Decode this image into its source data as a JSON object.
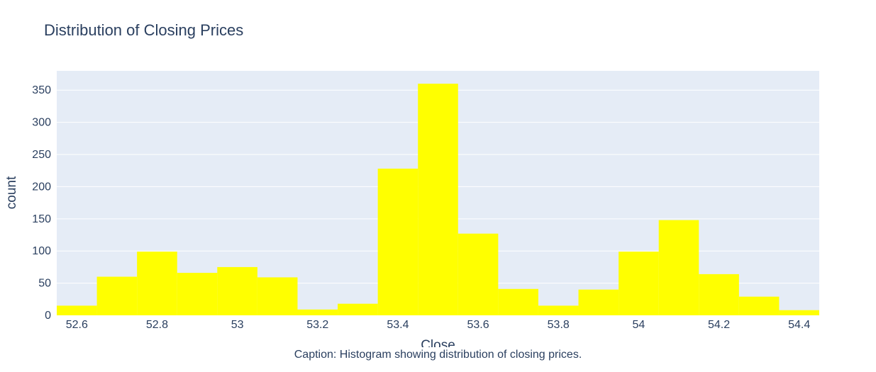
{
  "chart_data": {
    "type": "bar",
    "title": "Distribution of Closing Prices",
    "xlabel": "Close",
    "ylabel": "count",
    "bin_start": 52.55,
    "bin_width": 0.1,
    "values": [
      15,
      60,
      99,
      66,
      75,
      59,
      9,
      18,
      228,
      360,
      127,
      41,
      15,
      40,
      99,
      148,
      64,
      29,
      8
    ],
    "xlim": [
      52.55,
      54.45
    ],
    "ylim": [
      0,
      380
    ],
    "x_ticks": [
      52.6,
      52.8,
      53.0,
      53.2,
      53.4,
      53.6,
      53.8,
      54.0,
      54.2,
      54.4
    ],
    "x_tick_labels": [
      "52.6",
      "52.8",
      "53",
      "53.2",
      "53.4",
      "53.6",
      "53.8",
      "54",
      "54.2",
      "54.4"
    ],
    "y_ticks": [
      0,
      50,
      100,
      150,
      200,
      250,
      300,
      350
    ],
    "y_tick_labels": [
      "0",
      "50",
      "100",
      "150",
      "200",
      "250",
      "300",
      "350"
    ],
    "grid": true,
    "bar_color": "#ffff00",
    "plot_bg": "#e5ecf6",
    "text_color": "#2a3f5f"
  },
  "caption": "Caption: Histogram showing distribution of closing prices."
}
